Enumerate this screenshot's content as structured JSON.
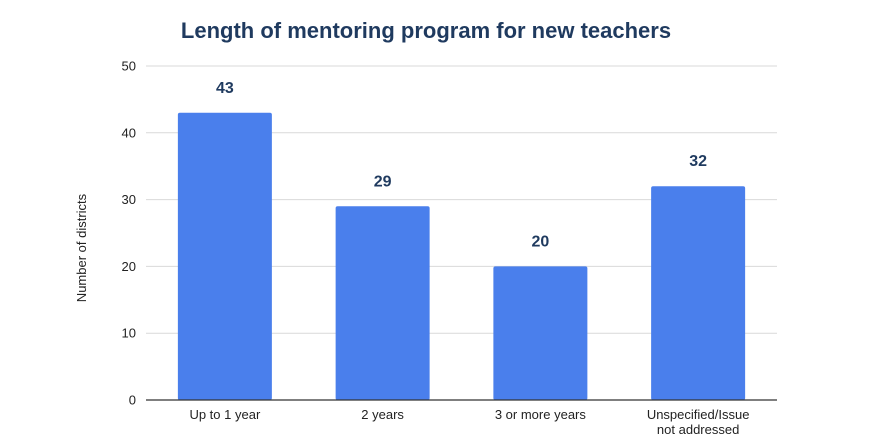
{
  "chart_data": {
    "type": "bar",
    "title": "Length of mentoring program for new teachers",
    "xlabel": "",
    "ylabel": "Number of districts",
    "categories": [
      "Up to 1 year",
      "2 years",
      "3 or more years",
      "Unspecified/Issue\nnot addressed"
    ],
    "values": [
      43,
      29,
      20,
      32
    ],
    "data_labels": [
      "43",
      "29",
      "20",
      "32"
    ],
    "ylim": [
      0,
      50
    ],
    "yticks": [
      0,
      10,
      20,
      30,
      40,
      50
    ],
    "grid": true,
    "legend": "none",
    "colors": {
      "bar": "#4a7fec",
      "title": "#1f3a5f",
      "data_label": "#1f3a5f",
      "grid": "#d9d9d9",
      "axis": "#333333"
    }
  }
}
